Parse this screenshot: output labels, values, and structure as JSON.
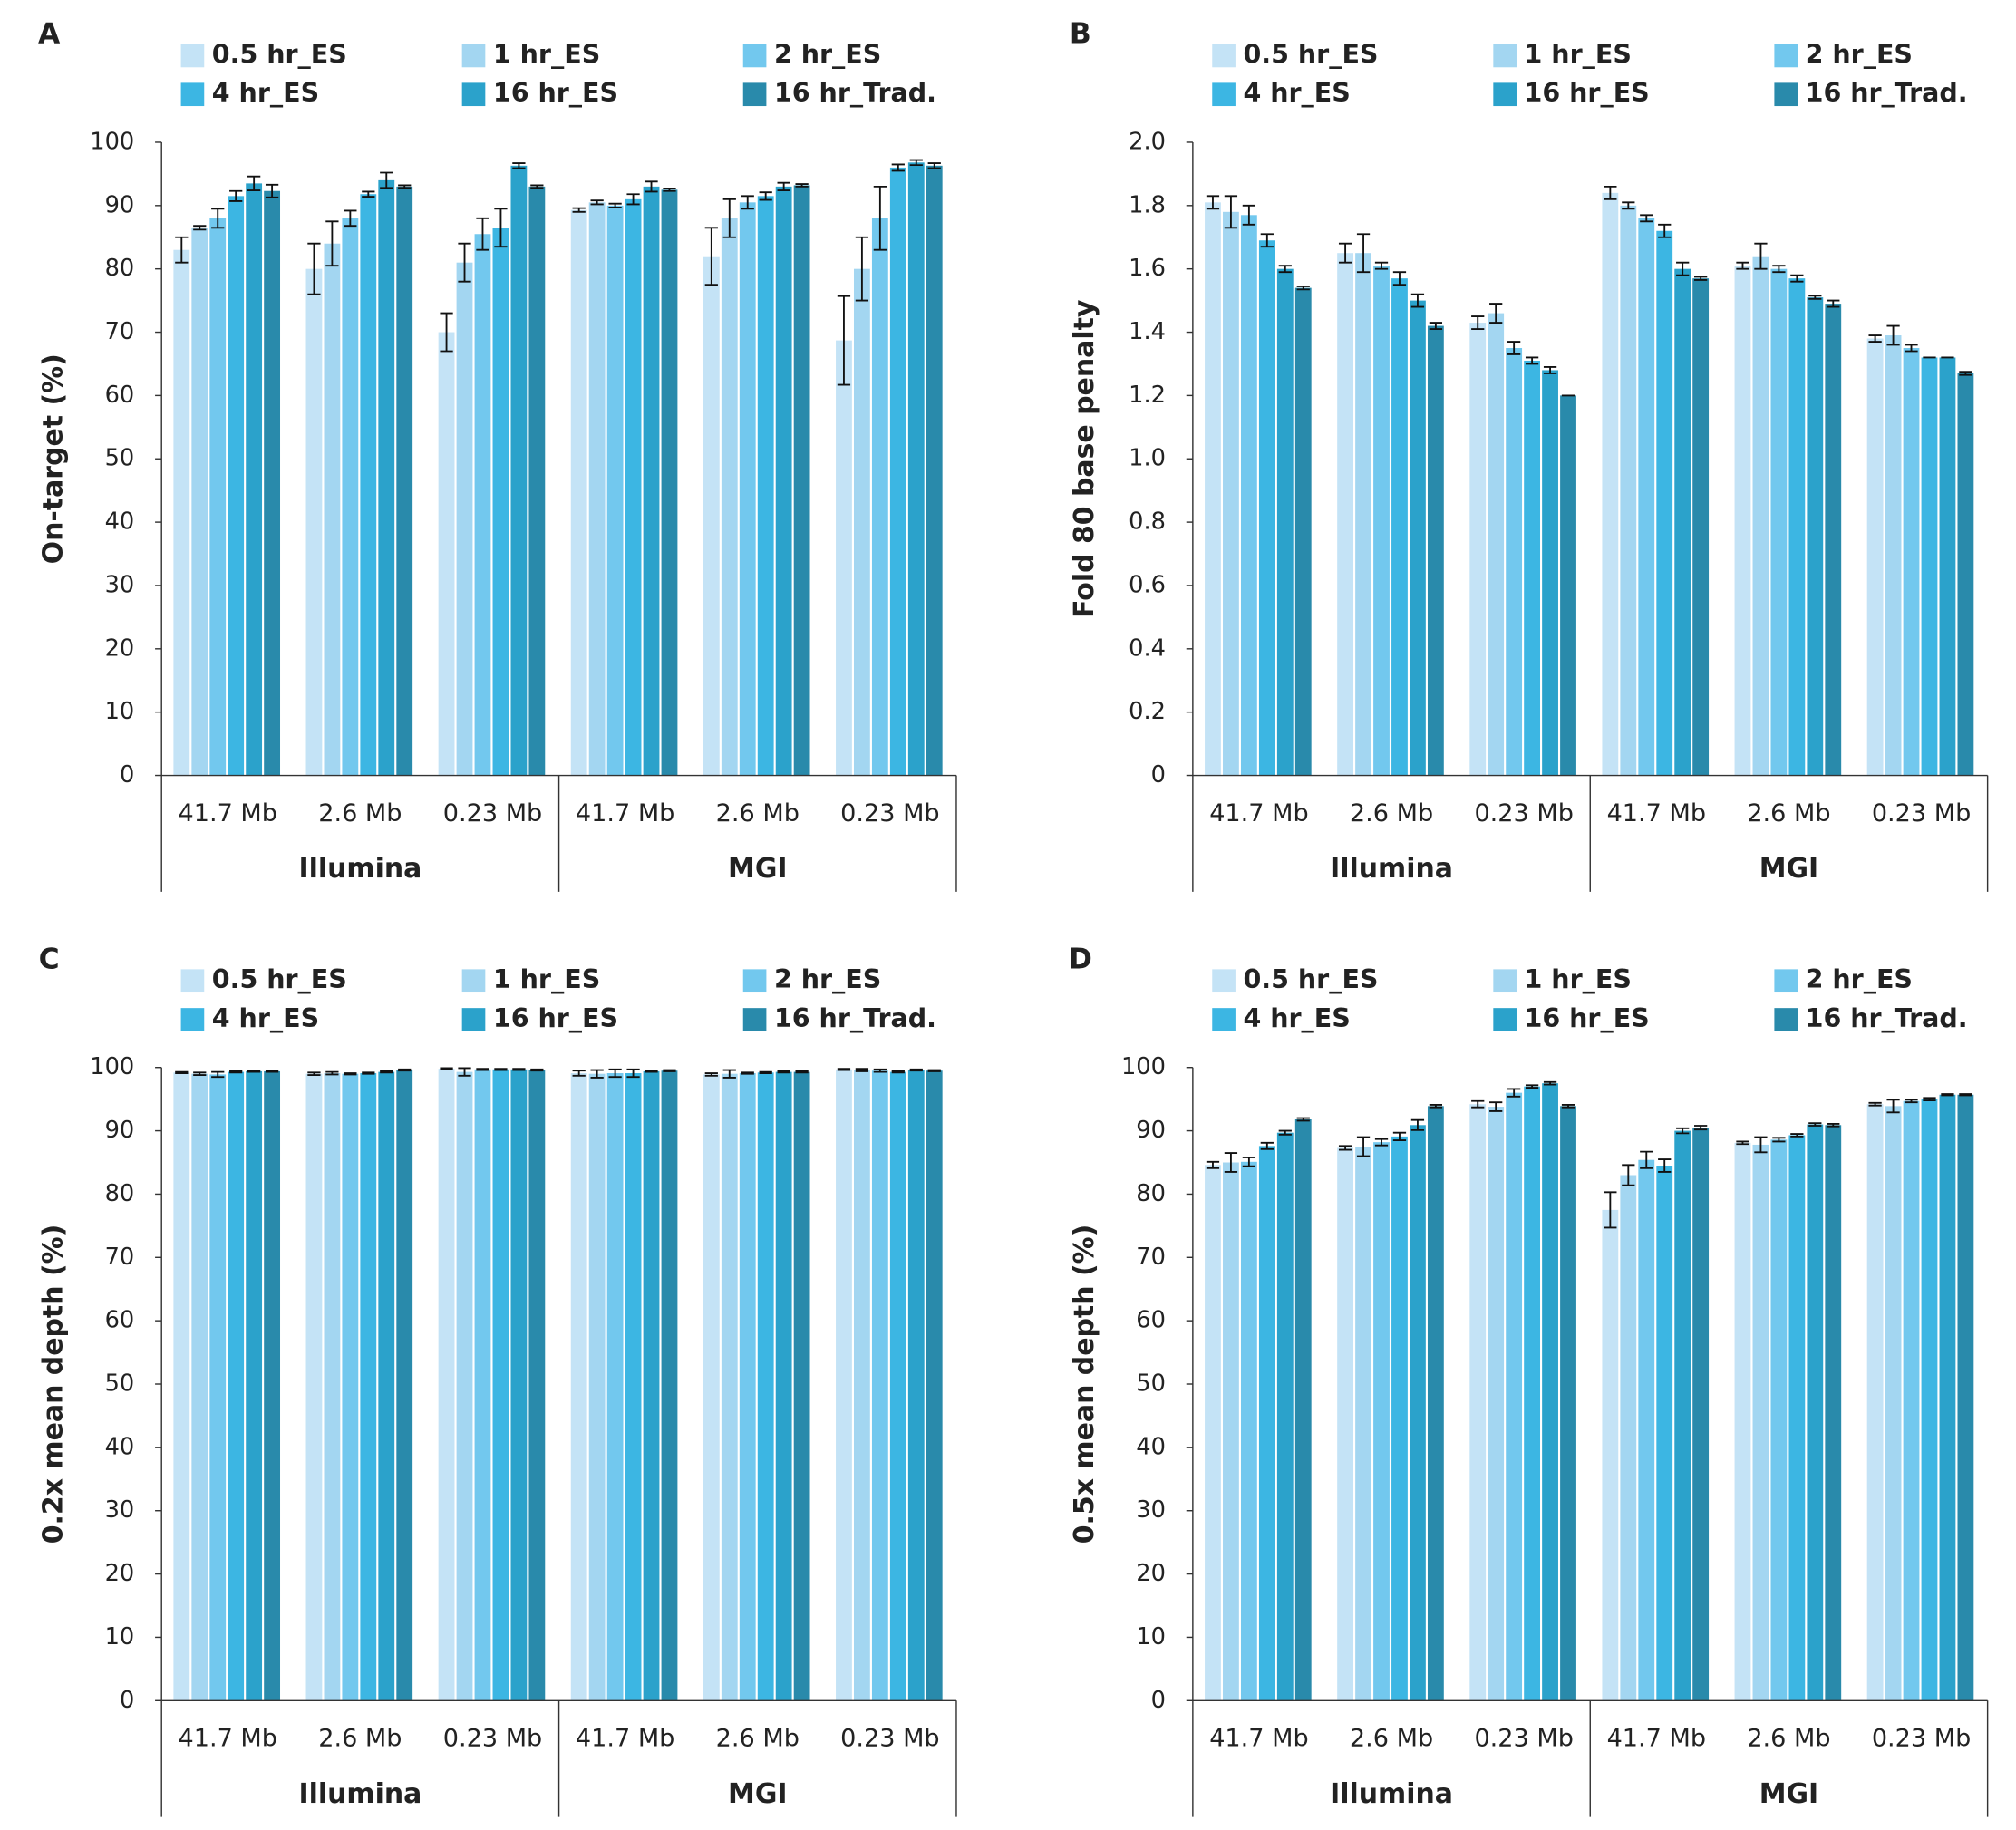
{
  "chart_data": [
    {
      "type": "bar",
      "panel_label": "A",
      "y_label": "On-target (%)",
      "categories": [
        "41.7 Mb",
        "2.6 Mb",
        "0.23 Mb",
        "41.7 Mb",
        "2.6 Mb",
        "0.23 Mb"
      ],
      "category_groups": [
        "Illumina",
        "MGI"
      ],
      "ylim": [
        0,
        100
      ],
      "yticks": [
        0,
        10,
        20,
        30,
        40,
        50,
        60,
        70,
        80,
        90,
        100
      ],
      "series": [
        {
          "name": "0.5 hr_ES",
          "color": "#c4e3f6",
          "values": [
            83,
            80,
            70,
            89.3,
            82,
            68.7
          ],
          "errors": [
            2,
            4,
            3,
            0.3,
            4.5,
            7
          ]
        },
        {
          "name": "1 hr_ES",
          "color": "#a3d6f1",
          "values": [
            86.5,
            84,
            81,
            90.5,
            88,
            80
          ],
          "errors": [
            0.3,
            3.5,
            3,
            0.3,
            3,
            5
          ]
        },
        {
          "name": "2 hr_ES",
          "color": "#72c8ee",
          "values": [
            88,
            88,
            85.5,
            90,
            90.5,
            88
          ],
          "errors": [
            1.5,
            1.2,
            2.5,
            0.3,
            1,
            5
          ]
        },
        {
          "name": "4 hr_ES",
          "color": "#3cb6e3",
          "values": [
            91.5,
            91.8,
            86.5,
            91,
            91.5,
            96
          ],
          "errors": [
            0.8,
            0.4,
            3,
            0.8,
            0.6,
            0.5
          ]
        },
        {
          "name": "16 hr_ES",
          "color": "#2ba2cb",
          "values": [
            93.5,
            94,
            96.3,
            93,
            93,
            96.8
          ],
          "errors": [
            1.1,
            1.2,
            0.4,
            0.8,
            0.6,
            0.4
          ]
        },
        {
          "name": "16 hr_Trad.",
          "color": "#298aab",
          "values": [
            92.3,
            93,
            93,
            92.5,
            93.2,
            96.3
          ],
          "errors": [
            1,
            0.2,
            0.2,
            0.2,
            0.2,
            0.4
          ]
        }
      ]
    },
    {
      "type": "bar",
      "panel_label": "B",
      "y_label": "Fold 80 base penalty",
      "categories": [
        "41.7 Mb",
        "2.6 Mb",
        "0.23 Mb",
        "41.7 Mb",
        "2.6 Mb",
        "0.23 Mb"
      ],
      "category_groups": [
        "Illumina",
        "MGI"
      ],
      "ylim": [
        0,
        2
      ],
      "yticks": [
        0,
        0.2,
        0.4,
        0.6,
        0.8,
        {
          "value": 1,
          "label": "1.0"
        },
        1.2,
        1.4,
        1.6,
        1.8,
        {
          "value": 2,
          "label": "2.0"
        }
      ],
      "series": [
        {
          "name": "0.5 hr_ES",
          "color": "#c4e3f6",
          "values": [
            1.81,
            1.65,
            1.43,
            1.84,
            1.61,
            1.38
          ],
          "errors": [
            0.02,
            0.03,
            0.02,
            0.02,
            0.01,
            0.01
          ]
        },
        {
          "name": "1 hr_ES",
          "color": "#a3d6f1",
          "values": [
            1.78,
            1.65,
            1.46,
            1.8,
            1.64,
            1.39
          ],
          "errors": [
            0.05,
            0.06,
            0.03,
            0.01,
            0.04,
            0.03
          ]
        },
        {
          "name": "2 hr_ES",
          "color": "#72c8ee",
          "values": [
            1.77,
            1.61,
            1.35,
            1.76,
            1.6,
            1.35
          ],
          "errors": [
            0.03,
            0.01,
            0.02,
            0.01,
            0.01,
            0.01
          ]
        },
        {
          "name": "4 hr_ES",
          "color": "#3cb6e3",
          "values": [
            1.69,
            1.57,
            1.31,
            1.72,
            1.57,
            1.32
          ],
          "errors": [
            0.02,
            0.02,
            0.01,
            0.02,
            0.01,
            0
          ]
        },
        {
          "name": "16 hr_ES",
          "color": "#2ba2cb",
          "values": [
            1.6,
            1.5,
            1.28,
            1.6,
            1.51,
            1.32
          ],
          "errors": [
            0.01,
            0.02,
            0.01,
            0.02,
            0.005,
            0
          ]
        },
        {
          "name": "16 hr_Trad.",
          "color": "#298aab",
          "values": [
            1.54,
            1.42,
            1.2,
            1.57,
            1.49,
            1.27
          ],
          "errors": [
            0.005,
            0.01,
            0,
            0.005,
            0.01,
            0.005
          ]
        }
      ]
    },
    {
      "type": "bar",
      "panel_label": "C",
      "y_label": "0.2x mean depth (%)",
      "categories": [
        "41.7 Mb",
        "2.6 Mb",
        "0.23 Mb",
        "41.7 Mb",
        "2.6 Mb",
        "0.23 Mb"
      ],
      "category_groups": [
        "Illumina",
        "MGI"
      ],
      "ylim": [
        0,
        100
      ],
      "yticks": [
        0,
        10,
        20,
        30,
        40,
        50,
        60,
        70,
        80,
        90,
        100
      ],
      "series": [
        {
          "name": "0.5 hr_ES",
          "color": "#c4e3f6",
          "values": [
            99.2,
            99,
            99.8,
            99.1,
            98.9,
            99.7
          ],
          "errors": [
            0.1,
            0.2,
            0.1,
            0.4,
            0.2,
            0.1
          ]
        },
        {
          "name": "1 hr_ES",
          "color": "#a3d6f1",
          "values": [
            99,
            99.1,
            99.3,
            99,
            99,
            99.6
          ],
          "errors": [
            0.2,
            0.2,
            0.6,
            0.6,
            0.6,
            0.2
          ]
        },
        {
          "name": "2 hr_ES",
          "color": "#72c8ee",
          "values": [
            98.9,
            99,
            99.7,
            99.1,
            99.1,
            99.5
          ],
          "errors": [
            0.4,
            0.1,
            0.1,
            0.6,
            0.1,
            0.2
          ]
        },
        {
          "name": "4 hr_ES",
          "color": "#3cb6e3",
          "values": [
            99.3,
            99.1,
            99.7,
            99.1,
            99.2,
            99.3
          ],
          "errors": [
            0.1,
            0.1,
            0.1,
            0.6,
            0.1,
            0.1
          ]
        },
        {
          "name": "16 hr_ES",
          "color": "#2ba2cb",
          "values": [
            99.4,
            99.3,
            99.7,
            99.4,
            99.3,
            99.6
          ],
          "errors": [
            0.1,
            0.1,
            0.1,
            0.1,
            0.1,
            0.1
          ]
        },
        {
          "name": "16 hr_Trad.",
          "color": "#298aab",
          "values": [
            99.4,
            99.6,
            99.6,
            99.5,
            99.3,
            99.5
          ],
          "errors": [
            0.1,
            0.1,
            0.1,
            0.1,
            0.1,
            0.1
          ]
        }
      ]
    },
    {
      "type": "bar",
      "panel_label": "D",
      "y_label": "0.5x mean depth (%)",
      "categories": [
        "41.7 Mb",
        "2.6 Mb",
        "0.23 Mb",
        "41.7 Mb",
        "2.6 Mb",
        "0.23 Mb"
      ],
      "category_groups": [
        "Illumina",
        "MGI"
      ],
      "ylim": [
        0,
        100
      ],
      "yticks": [
        0,
        10,
        20,
        30,
        40,
        50,
        60,
        70,
        80,
        90,
        100
      ],
      "series": [
        {
          "name": "0.5 hr_ES",
          "color": "#c4e3f6",
          "values": [
            84.6,
            87.3,
            94.2,
            77.5,
            88.1,
            94.2
          ],
          "errors": [
            0.5,
            0.3,
            0.5,
            2.8,
            0.2,
            0.2
          ]
        },
        {
          "name": "1 hr_ES",
          "color": "#a3d6f1",
          "values": [
            85,
            87.5,
            93.8,
            83,
            87.8,
            93.9
          ],
          "errors": [
            1.5,
            1.5,
            0.7,
            1.6,
            1.2,
            1
          ]
        },
        {
          "name": "2 hr_ES",
          "color": "#72c8ee",
          "values": [
            85.1,
            88.2,
            96,
            85.4,
            88.6,
            94.7
          ],
          "errors": [
            0.7,
            0.5,
            0.6,
            1.3,
            0.3,
            0.2
          ]
        },
        {
          "name": "4 hr_ES",
          "color": "#3cb6e3",
          "values": [
            87.6,
            89.1,
            97,
            84.5,
            89.3,
            95
          ],
          "errors": [
            0.5,
            0.6,
            0.2,
            1,
            0.2,
            0.2
          ]
        },
        {
          "name": "16 hr_ES",
          "color": "#2ba2cb",
          "values": [
            89.7,
            90.9,
            97.5,
            90,
            91,
            95.7
          ],
          "errors": [
            0.3,
            0.8,
            0.2,
            0.4,
            0.2,
            0.1
          ]
        },
        {
          "name": "16 hr_Trad.",
          "color": "#298aab",
          "values": [
            91.8,
            93.9,
            93.9,
            90.5,
            90.9,
            95.7
          ],
          "errors": [
            0.2,
            0.2,
            0.2,
            0.3,
            0.2,
            0.1
          ]
        }
      ]
    }
  ]
}
